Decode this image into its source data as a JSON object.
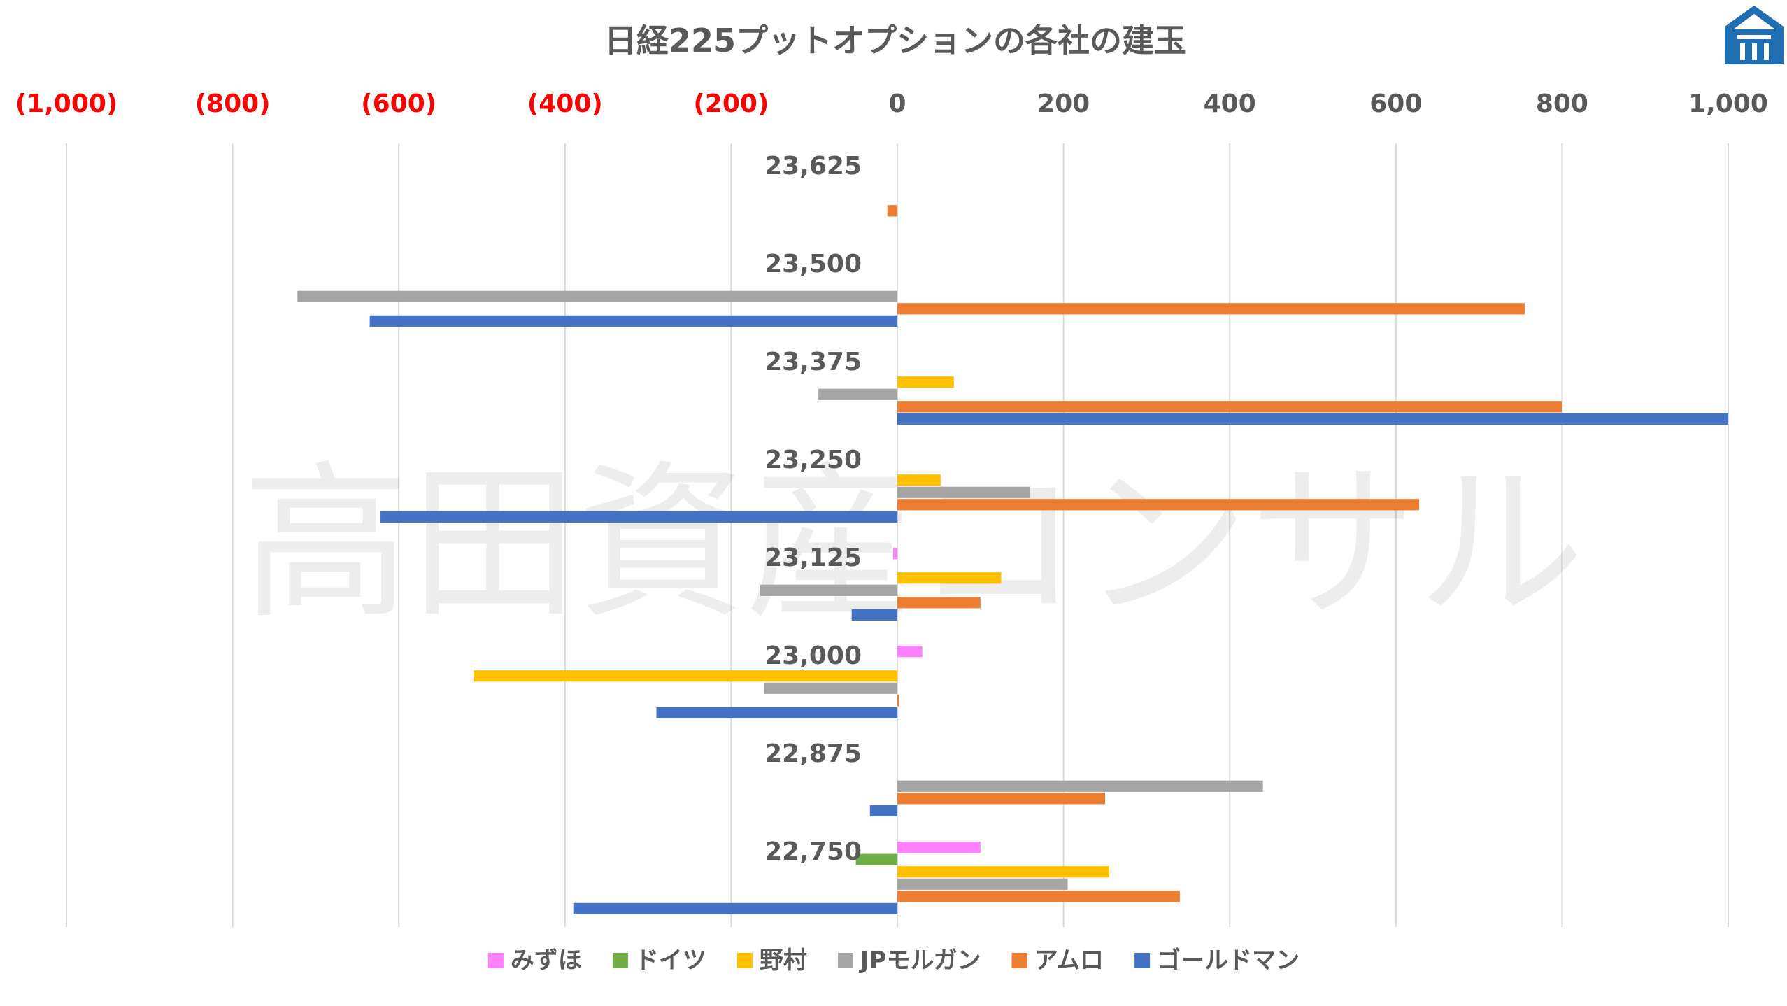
{
  "watermark": "高田資産コンサル",
  "logo": {
    "icon": "takata-house-logo",
    "color": "#1f6fb2"
  },
  "chart_data": {
    "type": "bar",
    "orientation": "horizontal",
    "title": "日経225プットオプションの各社の建玉",
    "xlim": [
      -1000,
      1000
    ],
    "x_ticks": [
      {
        "value": -1000,
        "label": "(1,000)"
      },
      {
        "value": -800,
        "label": "(800)"
      },
      {
        "value": -600,
        "label": "(600)"
      },
      {
        "value": -400,
        "label": "(400)"
      },
      {
        "value": -200,
        "label": "(200)"
      },
      {
        "value": 0,
        "label": "0"
      },
      {
        "value": 200,
        "label": "200"
      },
      {
        "value": 400,
        "label": "400"
      },
      {
        "value": 600,
        "label": "600"
      },
      {
        "value": 800,
        "label": "800"
      },
      {
        "value": 1000,
        "label": "1,000"
      }
    ],
    "x_axis_position": "top",
    "negative_tick_color": "#ff0000",
    "positive_tick_color": "#595959",
    "grid": true,
    "legend_position": "bottom",
    "categories": [
      "23,625",
      "23,500",
      "23,375",
      "23,250",
      "23,125",
      "23,000",
      "22,875",
      "22,750"
    ],
    "series": [
      {
        "name": "みずほ",
        "color": "#ff80ff",
        "values": [
          0,
          0,
          0,
          0,
          -5,
          30,
          0,
          100
        ]
      },
      {
        "name": "ドイツ",
        "color": "#70ad47",
        "values": [
          0,
          0,
          0,
          0,
          0,
          0,
          0,
          -50
        ]
      },
      {
        "name": "野村",
        "color": "#ffc000",
        "values": [
          0,
          0,
          68,
          52,
          125,
          -510,
          0,
          255
        ]
      },
      {
        "name": "JPモルガン",
        "color": "#a5a5a5",
        "values": [
          0,
          -722,
          -95,
          160,
          -165,
          -160,
          440,
          205
        ]
      },
      {
        "name": "アムロ",
        "color": "#ed7d31",
        "values": [
          -12,
          755,
          800,
          628,
          100,
          2,
          250,
          340
        ]
      },
      {
        "name": "ゴールドマン",
        "color": "#4472c4",
        "values": [
          0,
          -635,
          1000,
          -622,
          -55,
          -290,
          -33,
          -390
        ]
      }
    ]
  }
}
